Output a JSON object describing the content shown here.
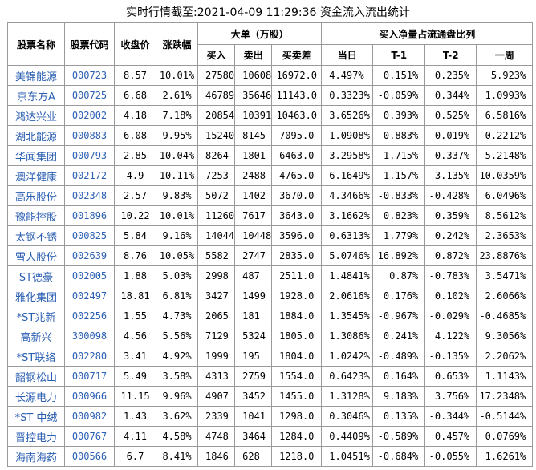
{
  "title": "实时行情截至:2021-04-09 11:29:36 资金流入流出统计",
  "headers": {
    "name": "股票名称",
    "code": "股票代码",
    "close": "收盘价",
    "change": "涨跌幅",
    "big_order": "大单（万股）",
    "buy": "买入",
    "sell": "卖出",
    "net": "买卖差",
    "ratio": "买入净量占流通盘比列",
    "today": "当日",
    "t1": "T-1",
    "t2": "T-2",
    "week": "一周"
  },
  "rows": [
    {
      "name": "美锦能源",
      "code": "000723",
      "close": "8.57",
      "change": "10.01%",
      "buy": "27580",
      "sell": "10608",
      "net": "16972.0",
      "today": "4.497%",
      "t1": "0.151%",
      "t2": "0.235%",
      "week": "5.923%"
    },
    {
      "name": "京东方A",
      "code": "000725",
      "close": "6.68",
      "change": "2.61%",
      "buy": "46789",
      "sell": "35646",
      "net": "11143.0",
      "today": "0.3323%",
      "t1": "-0.059%",
      "t2": "0.344%",
      "week": "1.0993%"
    },
    {
      "name": "鸿达兴业",
      "code": "002002",
      "close": "4.18",
      "change": "7.18%",
      "buy": "20854",
      "sell": "10391",
      "net": "10463.0",
      "today": "3.6526%",
      "t1": "0.393%",
      "t2": "0.525%",
      "week": "6.5816%"
    },
    {
      "name": "湖北能源",
      "code": "000883",
      "close": "6.08",
      "change": "9.95%",
      "buy": "15240",
      "sell": "8145",
      "net": "7095.0",
      "today": "1.0908%",
      "t1": "-0.883%",
      "t2": "0.019%",
      "week": "-0.2212%"
    },
    {
      "name": "华闻集团",
      "code": "000793",
      "close": "2.85",
      "change": "10.04%",
      "buy": "8264",
      "sell": "1801",
      "net": "6463.0",
      "today": "3.2958%",
      "t1": "1.715%",
      "t2": "0.337%",
      "week": "5.2148%"
    },
    {
      "name": "澳洋健康",
      "code": "002172",
      "close": "4.9",
      "change": "10.11%",
      "buy": "7253",
      "sell": "2488",
      "net": "4765.0",
      "today": "6.1649%",
      "t1": "1.157%",
      "t2": "3.135%",
      "week": "10.0359%"
    },
    {
      "name": "高乐股份",
      "code": "002348",
      "close": "2.57",
      "change": "9.83%",
      "buy": "5072",
      "sell": "1402",
      "net": "3670.0",
      "today": "4.3466%",
      "t1": "-0.833%",
      "t2": "-0.428%",
      "week": "6.0496%"
    },
    {
      "name": "豫能控股",
      "code": "001896",
      "close": "10.22",
      "change": "10.01%",
      "buy": "11260",
      "sell": "7617",
      "net": "3643.0",
      "today": "3.1662%",
      "t1": "0.823%",
      "t2": "0.359%",
      "week": "8.5612%"
    },
    {
      "name": "太钢不锈",
      "code": "000825",
      "close": "5.84",
      "change": "9.16%",
      "buy": "14044",
      "sell": "10448",
      "net": "3596.0",
      "today": "0.6313%",
      "t1": "1.779%",
      "t2": "0.242%",
      "week": "2.3653%"
    },
    {
      "name": "雪人股份",
      "code": "002639",
      "close": "8.76",
      "change": "10.05%",
      "buy": "5582",
      "sell": "2747",
      "net": "2835.0",
      "today": "5.0746%",
      "t1": "16.892%",
      "t2": "0.872%",
      "week": "23.8876%"
    },
    {
      "name": "ST德豪",
      "code": "002005",
      "close": "1.88",
      "change": "5.03%",
      "buy": "2998",
      "sell": "487",
      "net": "2511.0",
      "today": "1.4841%",
      "t1": "0.87%",
      "t2": "-0.783%",
      "week": "3.5471%"
    },
    {
      "name": "雅化集团",
      "code": "002497",
      "close": "18.81",
      "change": "6.81%",
      "buy": "3427",
      "sell": "1499",
      "net": "1928.0",
      "today": "2.0616%",
      "t1": "0.176%",
      "t2": "0.102%",
      "week": "2.6066%"
    },
    {
      "name": "*ST兆新",
      "code": "002256",
      "close": "1.55",
      "change": "4.73%",
      "buy": "2065",
      "sell": "181",
      "net": "1884.0",
      "today": "1.3545%",
      "t1": "-0.967%",
      "t2": "-0.029%",
      "week": "-0.4685%"
    },
    {
      "name": "高新兴",
      "code": "300098",
      "close": "4.56",
      "change": "5.56%",
      "buy": "7129",
      "sell": "5324",
      "net": "1805.0",
      "today": "1.3086%",
      "t1": "0.241%",
      "t2": "4.122%",
      "week": "9.3056%"
    },
    {
      "name": "*ST联络",
      "code": "002280",
      "close": "3.41",
      "change": "4.92%",
      "buy": "1999",
      "sell": "195",
      "net": "1804.0",
      "today": "1.0242%",
      "t1": "-0.489%",
      "t2": "-0.135%",
      "week": "2.2062%"
    },
    {
      "name": "韶钢松山",
      "code": "000717",
      "close": "5.49",
      "change": "3.58%",
      "buy": "4313",
      "sell": "2759",
      "net": "1554.0",
      "today": "0.6423%",
      "t1": "0.164%",
      "t2": "0.653%",
      "week": "1.1143%"
    },
    {
      "name": "长源电力",
      "code": "000966",
      "close": "11.15",
      "change": "9.96%",
      "buy": "4907",
      "sell": "3452",
      "net": "1455.0",
      "today": "1.3128%",
      "t1": "9.183%",
      "t2": "3.756%",
      "week": "17.2348%"
    },
    {
      "name": "*ST 中绒",
      "code": "000982",
      "close": "1.43",
      "change": "3.62%",
      "buy": "2339",
      "sell": "1041",
      "net": "1298.0",
      "today": "0.3046%",
      "t1": "0.135%",
      "t2": "-0.344%",
      "week": "-0.5144%"
    },
    {
      "name": "晋控电力",
      "code": "000767",
      "close": "4.11",
      "change": "4.58%",
      "buy": "4748",
      "sell": "3464",
      "net": "1284.0",
      "today": "0.4409%",
      "t1": "-0.589%",
      "t2": "0.457%",
      "week": "0.0769%"
    },
    {
      "name": "海南海药",
      "code": "000566",
      "close": "6.7",
      "change": "8.41%",
      "buy": "1846",
      "sell": "628",
      "net": "1218.0",
      "today": "1.0451%",
      "t1": "-0.684%",
      "t2": "-0.055%",
      "week": "1.6261%"
    }
  ]
}
